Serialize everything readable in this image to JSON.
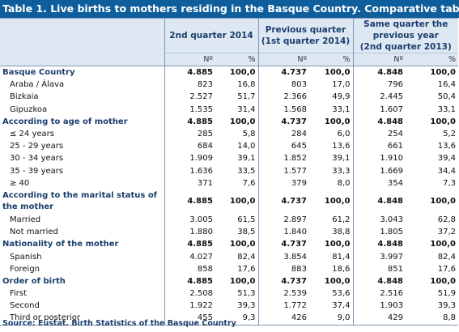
{
  "title": "Table 1. Live births to mothers residing in the Basque Country. Comparative table",
  "columns": {
    "c1": "2nd quarter 2014",
    "c2_line1": "Previous quarter",
    "c2_line2": "(1st quarter 2014)",
    "c3_line1": "Same quarter the",
    "c3_line2": "previous year",
    "c3_line3": "(2nd quarter 2013)",
    "num": "Nº",
    "pct": "%"
  },
  "rows": [
    {
      "label": "Basque Country",
      "type": "section",
      "v": [
        "4.885",
        "100,0",
        "4.737",
        "100,0",
        "4.848",
        "100,0"
      ]
    },
    {
      "label": "Araba / Álava",
      "type": "sub",
      "v": [
        "823",
        "16,8",
        "803",
        "17,0",
        "796",
        "16,4"
      ]
    },
    {
      "label": "Bizkaia",
      "type": "sub",
      "v": [
        "2.527",
        "51,7",
        "2.366",
        "49,9",
        "2.445",
        "50,4"
      ]
    },
    {
      "label": "Gipuzkoa",
      "type": "sub",
      "v": [
        "1.535",
        "31,4",
        "1.568",
        "33,1",
        "1.607",
        "33,1"
      ]
    },
    {
      "label": "According to age of mother",
      "type": "section",
      "v": [
        "4.885",
        "100,0",
        "4.737",
        "100,0",
        "4.848",
        "100,0"
      ]
    },
    {
      "label": "≤ 24 years",
      "type": "sub",
      "v": [
        "285",
        "5,8",
        "284",
        "6,0",
        "254",
        "5,2"
      ]
    },
    {
      "label": "25 - 29 years",
      "type": "sub",
      "v": [
        "684",
        "14,0",
        "645",
        "13,6",
        "661",
        "13,6"
      ]
    },
    {
      "label": "30 - 34 years",
      "type": "sub",
      "v": [
        "1.909",
        "39,1",
        "1.852",
        "39,1",
        "1.910",
        "39,4"
      ]
    },
    {
      "label": "35 - 39 years",
      "type": "sub",
      "v": [
        "1.636",
        "33,5",
        "1.577",
        "33,3",
        "1.669",
        "34,4"
      ]
    },
    {
      "label": "≥ 40",
      "type": "sub",
      "v": [
        "371",
        "7,6",
        "379",
        "8,0",
        "354",
        "7,3"
      ]
    },
    {
      "label": "According to the marital status of the mother",
      "type": "section-tall",
      "v": [
        "4.885",
        "100,0",
        "4.737",
        "100,0",
        "4.848",
        "100,0"
      ]
    },
    {
      "label": "Married",
      "type": "sub",
      "v": [
        "3.005",
        "61,5",
        "2.897",
        "61,2",
        "3.043",
        "62,8"
      ]
    },
    {
      "label": "Not married",
      "type": "sub",
      "v": [
        "1.880",
        "38,5",
        "1.840",
        "38,8",
        "1.805",
        "37,2"
      ]
    },
    {
      "label": "Nationality of the mother",
      "type": "section-normal",
      "v": [
        "4.885",
        "100,0",
        "4.737",
        "100,0",
        "4.848",
        "100,0"
      ]
    },
    {
      "label": "Spanish",
      "type": "sub",
      "v": [
        "4.027",
        "82,4",
        "3.854",
        "81,4",
        "3.997",
        "82,4"
      ]
    },
    {
      "label": "Foreign",
      "type": "sub",
      "v": [
        "858",
        "17,6",
        "883",
        "18,6",
        "851",
        "17,6"
      ]
    },
    {
      "label": "Order of birth",
      "type": "section",
      "v": [
        "4.885",
        "100,0",
        "4.737",
        "100,0",
        "4.848",
        "100,0"
      ]
    },
    {
      "label": "First",
      "type": "sub",
      "v": [
        "2.508",
        "51,3",
        "2.539",
        "53,6",
        "2.516",
        "51,9"
      ]
    },
    {
      "label": "Second",
      "type": "sub",
      "v": [
        "1.922",
        "39,3",
        "1.772",
        "37,4",
        "1.903",
        "39,3"
      ]
    },
    {
      "label": "Third or posterior",
      "type": "sub",
      "v": [
        "455",
        "9,3",
        "426",
        "9,0",
        "429",
        "8,8"
      ]
    }
  ],
  "source": "Source: Eustat. Birth Statistics of the  Basque Country",
  "colors": {
    "title_bg": "#0f5e9c",
    "header_bg": "#dde8f2",
    "section_text": "#1b3e6e"
  }
}
